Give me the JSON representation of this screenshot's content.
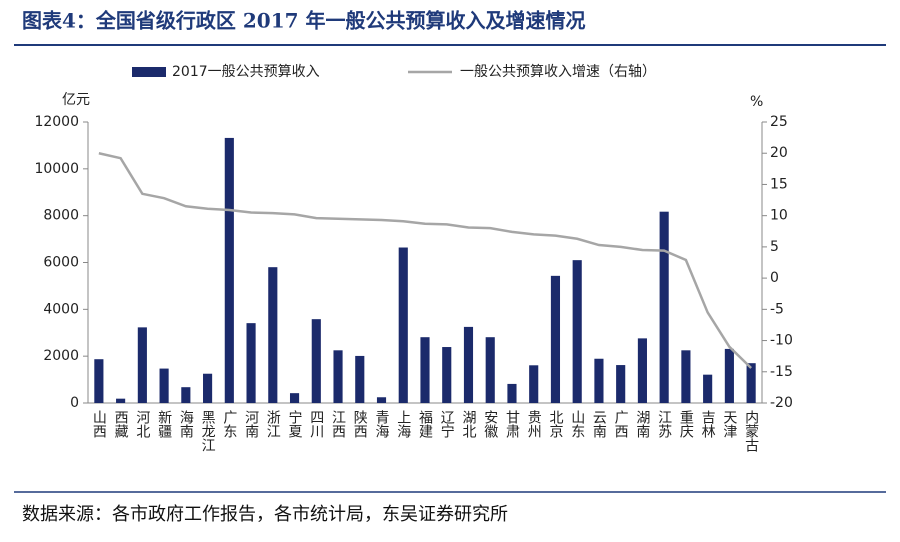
{
  "chart_data": {
    "type": "bar_line",
    "title": "图表4：全国省级行政区 2017 年一般公共预算收入及增速情况",
    "y_label": "亿元",
    "y2_label": "%",
    "source": "数据来源：各市政府工作报告，各市统计局，东吴证券研究所",
    "categories": [
      "山西",
      "西藏",
      "河北",
      "新疆",
      "海南",
      "黑龙江",
      "广东",
      "河南",
      "浙江",
      "宁夏",
      "四川",
      "江西",
      "陕西",
      "青海",
      "上海",
      "福建",
      "辽宁",
      "湖北",
      "安徽",
      "甘肃",
      "贵州",
      "北京",
      "山东",
      "云南",
      "广西",
      "湖南",
      "江苏",
      "重庆",
      "吉林",
      "天津",
      "内蒙古"
    ],
    "series": [
      {
        "name": "2017一般公共预算收入",
        "type": "bar",
        "color": "#1b2a6b",
        "values": [
          1870,
          185,
          3230,
          1470,
          675,
          1250,
          11320,
          3410,
          5800,
          420,
          3580,
          2250,
          2010,
          245,
          6640,
          2810,
          2390,
          3250,
          2810,
          815,
          1610,
          5430,
          6100,
          1890,
          1620,
          2760,
          8170,
          2250,
          1210,
          2310,
          1700
        ]
      },
      {
        "name": "一般公共预算收入增速（右轴）",
        "type": "line",
        "axis": "y2",
        "color": "#a6a6a6",
        "values": [
          20,
          19.2,
          13.5,
          12.8,
          11.5,
          11.1,
          10.9,
          10.5,
          10.4,
          10.2,
          9.6,
          9.5,
          9.4,
          9.3,
          9.1,
          8.7,
          8.6,
          8.1,
          8.0,
          7.4,
          7.0,
          6.8,
          6.3,
          5.3,
          5.0,
          4.5,
          4.4,
          2.9,
          -5.5,
          -11.0,
          -14.4
        ]
      }
    ],
    "ylim": [
      0,
      12000
    ],
    "yticks": [
      0,
      2000,
      4000,
      6000,
      8000,
      10000,
      12000
    ],
    "y2lim": [
      -20,
      25
    ],
    "y2ticks": [
      -20,
      -15,
      -10,
      -5,
      0,
      5,
      10,
      15,
      20,
      25
    ],
    "legend": "top"
  }
}
